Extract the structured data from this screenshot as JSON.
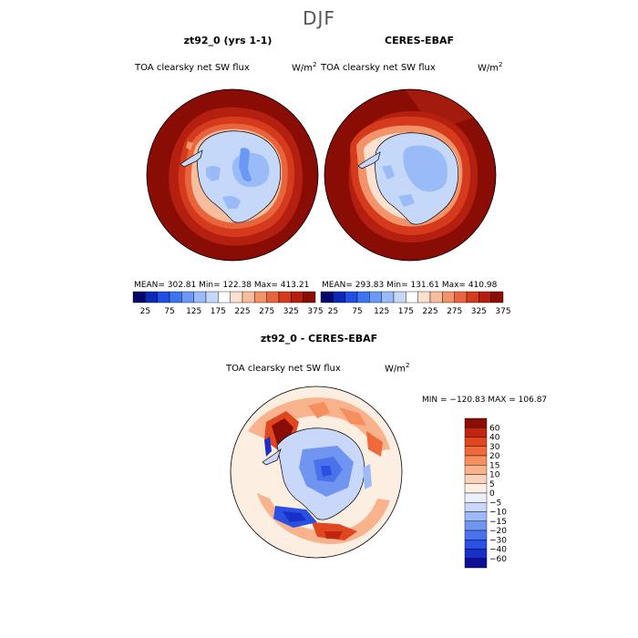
{
  "season": "DJF",
  "panels": [
    {
      "title": "zt92_0 (yrs 1-1)",
      "variable": "TOA clearsky net SW flux",
      "unit_base": "W/m",
      "unit_exp": "2",
      "stats": "MEAN= 302.81   Min= 122.38   Max= 413.21"
    },
    {
      "title": "CERES-EBAF",
      "variable": "TOA clearsky net SW flux",
      "unit_base": "W/m",
      "unit_exp": "2",
      "stats": "MEAN= 293.83   Min= 131.61   Max= 410.98"
    }
  ],
  "abs_colorbar": {
    "colors": [
      "#08086b",
      "#0a2ab5",
      "#1f4fe6",
      "#3d74f0",
      "#6a98f5",
      "#99bbf7",
      "#c6d8fa",
      "#ffffff",
      "#fde0cf",
      "#f8bd9c",
      "#f2936a",
      "#e8643d",
      "#d63a1c",
      "#b51f0f",
      "#8a0d05"
    ],
    "tick_labels": [
      "25",
      "75",
      "125",
      "175",
      "225",
      "275",
      "325",
      "375"
    ]
  },
  "diff": {
    "title": "zt92_0 - CERES-EBAF",
    "variable": "TOA clearsky net SW flux",
    "unit_base": "W/m",
    "unit_exp": "2",
    "stats": "MIN = −120.83  MAX = 106.87",
    "colors": [
      "#8a0d05",
      "#c1250e",
      "#e0461f",
      "#ef6a3a",
      "#f58f60",
      "#f9b38c",
      "#fcd3b8",
      "#fdeee2",
      "#eaf0fd",
      "#c9d8fa",
      "#9dbaf6",
      "#6f95f1",
      "#4a73eb",
      "#2a4fe3",
      "#1a2fc8",
      "#0c0f94"
    ],
    "tick_labels": [
      "60",
      "40",
      "30",
      "20",
      "15",
      "10",
      "5",
      "0",
      "−5",
      "−10",
      "−15",
      "−20",
      "−30",
      "−40",
      "−60"
    ]
  }
}
